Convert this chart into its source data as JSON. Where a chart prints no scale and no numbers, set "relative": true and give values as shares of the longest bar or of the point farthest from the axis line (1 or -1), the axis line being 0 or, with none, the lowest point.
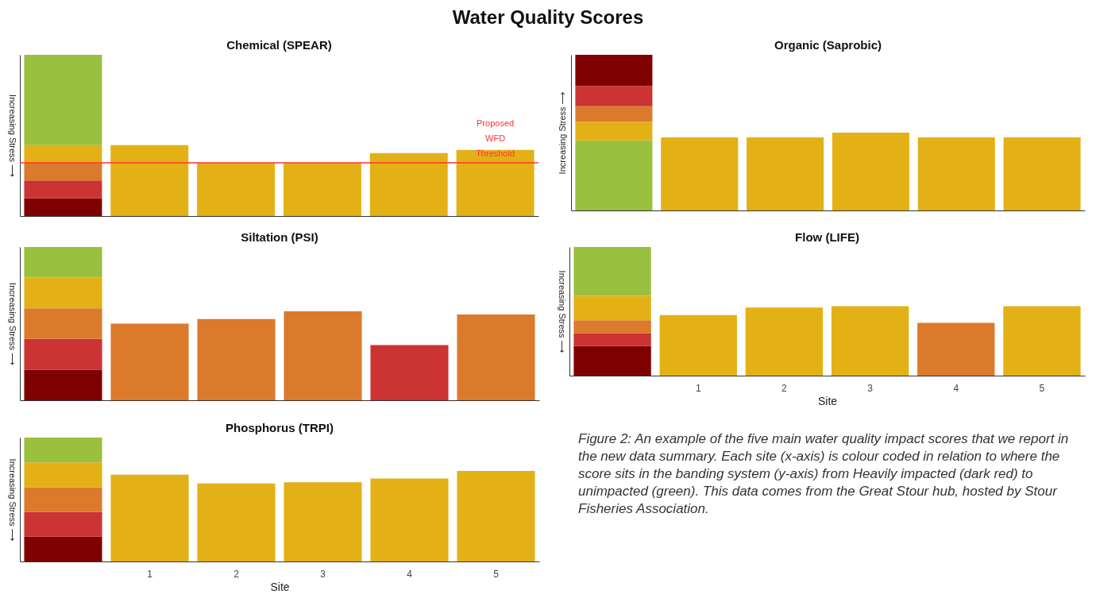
{
  "chart_data": [
    {
      "type": "bar",
      "title": "Chemical (SPEAR)",
      "ylabel": "Increasing Stress ⟶",
      "categories": [
        null,
        "1",
        "2",
        "3",
        "4",
        "5"
      ],
      "stacked": true,
      "relative": true,
      "tick_labels": false,
      "series": [
        {
          "color": "#7f0000",
          "values": [
            0.11,
            null,
            null,
            null,
            null,
            null
          ]
        },
        {
          "color": "#cc3333",
          "values": [
            0.11,
            null,
            null,
            null,
            null,
            null
          ]
        },
        {
          "color": "#dc7a2c",
          "values": [
            0.11,
            null,
            null,
            null,
            null,
            null
          ]
        },
        {
          "color": "#e3b116",
          "values": [
            0.11,
            null,
            null,
            null,
            null,
            null
          ]
        },
        {
          "color": "#9ac03f",
          "values": [
            0.56,
            null,
            null,
            null,
            null,
            null
          ]
        },
        {
          "colors": [
            null,
            "#e3b116",
            "#e3b116",
            "#e3b116",
            "#e3b116",
            "#e3b116"
          ],
          "values": [
            null,
            0.44,
            0.33,
            0.33,
            0.39,
            0.41
          ]
        }
      ],
      "ref_lines": [
        {
          "axis": "y",
          "value": 0.33,
          "label": "Proposed WFD Threshold",
          "color": "#ff3333"
        }
      ]
    },
    {
      "type": "bar",
      "title": "Organic (Saprobic)",
      "ylabel": "Increasing Stress ⟶",
      "categories": [
        null,
        "1",
        "2",
        "3",
        "4",
        "5"
      ],
      "stacked": true,
      "relative": true,
      "tick_labels": false,
      "series": [
        {
          "color": "#9ac03f",
          "values": [
            0.45,
            null,
            null,
            null,
            null,
            null
          ]
        },
        {
          "color": "#e3b116",
          "values": [
            0.12,
            null,
            null,
            null,
            null,
            null
          ]
        },
        {
          "color": "#dc7a2c",
          "values": [
            0.1,
            null,
            null,
            null,
            null,
            null
          ]
        },
        {
          "color": "#cc3333",
          "values": [
            0.13,
            null,
            null,
            null,
            null,
            null
          ]
        },
        {
          "color": "#7f0000",
          "values": [
            0.2,
            null,
            null,
            null,
            null,
            null
          ]
        },
        {
          "colors": [
            null,
            "#e3b116",
            "#e3b116",
            "#e3b116",
            "#e3b116",
            "#e3b116"
          ],
          "values": [
            null,
            0.47,
            0.47,
            0.5,
            0.47,
            0.47
          ]
        }
      ]
    },
    {
      "type": "bar",
      "title": "Siltation (PSI)",
      "ylabel": "Increasing Stress ⟶",
      "categories": [
        null,
        "1",
        "2",
        "3",
        "4",
        "5"
      ],
      "stacked": true,
      "relative": true,
      "tick_labels": false,
      "series": [
        {
          "color": "#7f0000",
          "values": [
            0.2,
            null,
            null,
            null,
            null,
            null
          ]
        },
        {
          "color": "#cc3333",
          "values": [
            0.2,
            null,
            null,
            null,
            null,
            null
          ]
        },
        {
          "color": "#dc7a2c",
          "values": [
            0.2,
            null,
            null,
            null,
            null,
            null
          ]
        },
        {
          "color": "#e3b116",
          "values": [
            0.2,
            null,
            null,
            null,
            null,
            null
          ]
        },
        {
          "color": "#9ac03f",
          "values": [
            0.2,
            null,
            null,
            null,
            null,
            null
          ]
        },
        {
          "colors": [
            null,
            "#dc7a2c",
            "#dc7a2c",
            "#dc7a2c",
            "#cc3333",
            "#dc7a2c"
          ],
          "values": [
            null,
            0.5,
            0.53,
            0.58,
            0.36,
            0.56
          ]
        }
      ]
    },
    {
      "type": "bar",
      "title": "Flow (LIFE)",
      "xlabel": "Site",
      "ylabel": "Increasing Stress ⟶",
      "categories": [
        null,
        "1",
        "2",
        "3",
        "4",
        "5"
      ],
      "stacked": true,
      "relative": true,
      "tick_labels": "x",
      "series": [
        {
          "color": "#7f0000",
          "values": [
            0.23,
            null,
            null,
            null,
            null,
            null
          ]
        },
        {
          "color": "#cc3333",
          "values": [
            0.1,
            null,
            null,
            null,
            null,
            null
          ]
        },
        {
          "color": "#dc7a2c",
          "values": [
            0.1,
            null,
            null,
            null,
            null,
            null
          ]
        },
        {
          "color": "#e3b116",
          "values": [
            0.19,
            null,
            null,
            null,
            null,
            null
          ]
        },
        {
          "color": "#9ac03f",
          "values": [
            0.38,
            null,
            null,
            null,
            null,
            null
          ]
        },
        {
          "colors": [
            null,
            "#e3b116",
            "#e3b116",
            "#e3b116",
            "#dc7a2c",
            "#e3b116"
          ],
          "values": [
            null,
            0.47,
            0.53,
            0.54,
            0.41,
            0.54
          ]
        }
      ]
    },
    {
      "type": "bar",
      "title": "Phosphorus (TRPI)",
      "xlabel": "Site",
      "ylabel": "Increasing Stress ⟶",
      "categories": [
        null,
        "1",
        "2",
        "3",
        "4",
        "5"
      ],
      "stacked": true,
      "relative": true,
      "tick_labels": "x",
      "series": [
        {
          "color": "#7f0000",
          "values": [
            0.2,
            null,
            null,
            null,
            null,
            null
          ]
        },
        {
          "color": "#cc3333",
          "values": [
            0.2,
            null,
            null,
            null,
            null,
            null
          ]
        },
        {
          "color": "#dc7a2c",
          "values": [
            0.2,
            null,
            null,
            null,
            null,
            null
          ]
        },
        {
          "color": "#e3b116",
          "values": [
            0.2,
            null,
            null,
            null,
            null,
            null
          ]
        },
        {
          "color": "#9ac03f",
          "values": [
            0.2,
            null,
            null,
            null,
            null,
            null
          ]
        },
        {
          "colors": [
            null,
            "#e3b116",
            "#e3b116",
            "#e3b116",
            "#e3b116",
            "#e3b116"
          ],
          "values": [
            null,
            0.7,
            0.63,
            0.64,
            0.67,
            0.73
          ]
        }
      ]
    },
    {
      "type": "other",
      "title": "Water Quality Scores",
      "annotations": [
        "Figure 2: An example of the five main water quality impact scores that we report in the new data summary. Each site (x-axis) is colour coded in relation to where the score sits in the banding system (y-axis) from Heavily impacted (dark red) to unimpacted (green). This data comes from the Great Stour hub, hosted by Stour Fisheries Association."
      ]
    }
  ]
}
